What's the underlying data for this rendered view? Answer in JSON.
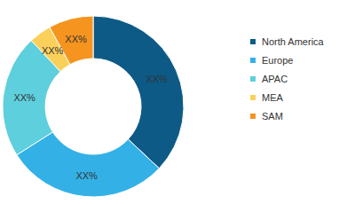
{
  "chart_data": {
    "type": "donut",
    "categories": [
      "North America",
      "Europe",
      "APAC",
      "MEA",
      "SAM"
    ],
    "values": [
      37,
      29,
      22,
      4,
      8
    ],
    "value_labels": [
      "XX%",
      "XX%",
      "XX%",
      "XX%",
      "XX%"
    ],
    "colors": [
      "#0d5a86",
      "#33b1e6",
      "#5ecfdc",
      "#fbd05a",
      "#f5951f"
    ],
    "data_labels": true,
    "legend": "right"
  }
}
